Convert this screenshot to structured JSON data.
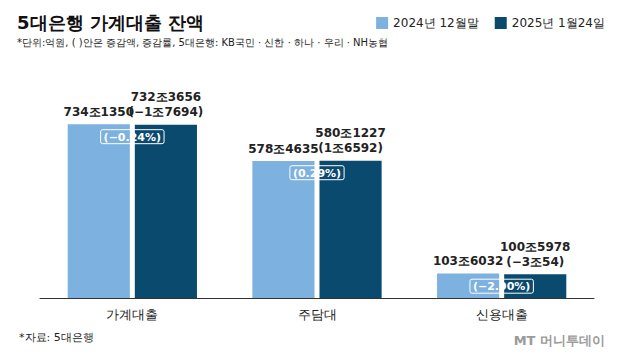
{
  "chart_data": {
    "type": "bar",
    "title": "5대은행 가계대출 잔액",
    "subtitle": "*단위:억원, ( )안은 증감액, 증감률, 5대은행: KB국민 · 신한 · 하나 · 우리 · NH농협",
    "source": "*자료: 5대은행",
    "credit": "MT 머니투데이",
    "categories": [
      "가계대출",
      "주담대",
      "신용대출"
    ],
    "series": [
      {
        "name": "2024년 12월말",
        "color": "#7db1df",
        "values": [
          7341350,
          5784635,
          1036032
        ],
        "value_labels": [
          "734조1350",
          "578조4635",
          "103조6032"
        ]
      },
      {
        "name": "2025년 1월24일",
        "color": "#0b4a6f",
        "values": [
          7323656,
          5801227,
          1005978
        ],
        "value_labels": [
          "732조3656",
          "580조1227",
          "100조5978"
        ],
        "change_labels": [
          "(−1조7694)",
          "(1조6592)",
          "(−3조54)"
        ],
        "change_rate_labels": [
          "(−0.24%)",
          "(0.29%)",
          "(−2.90%)"
        ]
      }
    ],
    "ylim": [
      0,
      9000000
    ],
    "data_labels": true,
    "legend": "top-right",
    "grid": false,
    "tick_labels": "x"
  }
}
